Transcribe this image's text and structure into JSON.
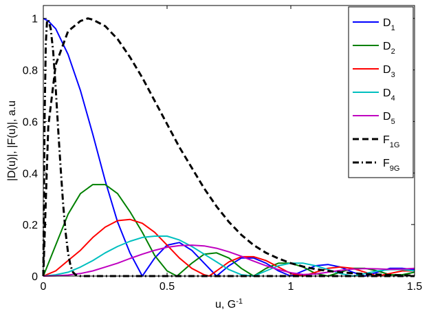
{
  "chart_data": {
    "type": "line",
    "xlabel": "u, G",
    "xlabel_sup": "-1",
    "ylabel": "|D(u)|, |F(u)|, a.u",
    "xlim": [
      0,
      1.5
    ],
    "ylim": [
      0,
      1.05
    ],
    "x_ticks": [
      0,
      0.5,
      1,
      1.5
    ],
    "x_tick_labels": [
      "0",
      "0.5",
      "1",
      "1.5"
    ],
    "y_ticks": [
      0,
      0.2,
      0.4,
      0.6,
      0.8,
      1
    ],
    "y_tick_labels": [
      "0",
      "0.2",
      "0.4",
      "0.6",
      "0.8",
      "1"
    ],
    "grid": false,
    "legend_position": "top-right",
    "series": [
      {
        "name": "D",
        "sub": "1",
        "color": "#0000ff",
        "dash": "solid",
        "x": [
          0,
          0.02,
          0.05,
          0.1,
          0.15,
          0.2,
          0.25,
          0.3,
          0.35,
          0.4,
          0.45,
          0.5,
          0.55,
          0.6,
          0.65,
          0.7,
          0.75,
          0.8,
          0.85,
          0.9,
          0.95,
          1.0,
          1.05,
          1.1,
          1.15,
          1.2,
          1.25,
          1.3,
          1.35,
          1.4,
          1.45,
          1.5
        ],
        "y": [
          1.0,
          0.99,
          0.96,
          0.86,
          0.72,
          0.55,
          0.37,
          0.21,
          0.09,
          0.0,
          0.07,
          0.12,
          0.13,
          0.1,
          0.05,
          0.0,
          0.04,
          0.07,
          0.07,
          0.05,
          0.02,
          0.0,
          0.02,
          0.04,
          0.045,
          0.035,
          0.015,
          0.0,
          0.015,
          0.03,
          0.03,
          0.025
        ]
      },
      {
        "name": "D",
        "sub": "2",
        "color": "#008000",
        "dash": "solid",
        "x": [
          0,
          0.05,
          0.1,
          0.15,
          0.2,
          0.25,
          0.3,
          0.35,
          0.4,
          0.45,
          0.5,
          0.54,
          0.6,
          0.65,
          0.7,
          0.75,
          0.8,
          0.85,
          0.9,
          0.95,
          1.0,
          1.05,
          1.1,
          1.15,
          1.2,
          1.25,
          1.3,
          1.35,
          1.4,
          1.45,
          1.5
        ],
        "y": [
          0.0,
          0.12,
          0.24,
          0.32,
          0.355,
          0.355,
          0.32,
          0.25,
          0.17,
          0.08,
          0.02,
          0.0,
          0.05,
          0.085,
          0.09,
          0.07,
          0.03,
          0.0,
          0.03,
          0.05,
          0.05,
          0.035,
          0.01,
          0.0,
          0.015,
          0.03,
          0.03,
          0.02,
          0.005,
          0.005,
          0.015
        ]
      },
      {
        "name": "D",
        "sub": "3",
        "color": "#ff0000",
        "dash": "solid",
        "x": [
          0,
          0.05,
          0.1,
          0.15,
          0.2,
          0.25,
          0.3,
          0.35,
          0.4,
          0.45,
          0.5,
          0.55,
          0.6,
          0.65,
          0.67,
          0.7,
          0.75,
          0.8,
          0.85,
          0.9,
          0.95,
          1.0,
          1.05,
          1.1,
          1.15,
          1.2,
          1.25,
          1.3,
          1.35,
          1.4,
          1.45,
          1.5
        ],
        "y": [
          0.0,
          0.02,
          0.06,
          0.1,
          0.15,
          0.19,
          0.215,
          0.22,
          0.205,
          0.17,
          0.12,
          0.07,
          0.03,
          0.005,
          0.0,
          0.02,
          0.055,
          0.075,
          0.075,
          0.06,
          0.035,
          0.01,
          0.0,
          0.015,
          0.03,
          0.035,
          0.03,
          0.015,
          0.0,
          0.01,
          0.02,
          0.02
        ]
      },
      {
        "name": "D",
        "sub": "4",
        "color": "#00bfbf",
        "dash": "solid",
        "x": [
          0,
          0.05,
          0.1,
          0.15,
          0.2,
          0.25,
          0.3,
          0.35,
          0.4,
          0.45,
          0.5,
          0.55,
          0.6,
          0.65,
          0.7,
          0.75,
          0.8,
          0.85,
          0.9,
          0.95,
          1.0,
          1.05,
          1.1,
          1.15,
          1.2,
          1.25,
          1.3,
          1.35,
          1.4,
          1.45,
          1.5
        ],
        "y": [
          0.0,
          0.005,
          0.015,
          0.035,
          0.06,
          0.09,
          0.115,
          0.135,
          0.15,
          0.155,
          0.155,
          0.14,
          0.115,
          0.085,
          0.055,
          0.025,
          0.005,
          0.0,
          0.02,
          0.04,
          0.05,
          0.05,
          0.04,
          0.025,
          0.01,
          0.0,
          0.01,
          0.02,
          0.025,
          0.025,
          0.02
        ]
      },
      {
        "name": "D",
        "sub": "5",
        "color": "#bf00bf",
        "dash": "solid",
        "x": [
          0,
          0.05,
          0.1,
          0.15,
          0.2,
          0.25,
          0.3,
          0.35,
          0.4,
          0.45,
          0.5,
          0.55,
          0.6,
          0.65,
          0.7,
          0.75,
          0.8,
          0.85,
          0.9,
          0.95,
          1.0,
          1.05,
          1.1,
          1.15,
          1.2,
          1.25,
          1.3,
          1.35,
          1.4,
          1.45,
          1.5
        ],
        "y": [
          0.0,
          0.001,
          0.004,
          0.01,
          0.02,
          0.035,
          0.05,
          0.068,
          0.085,
          0.1,
          0.112,
          0.118,
          0.12,
          0.117,
          0.108,
          0.094,
          0.077,
          0.058,
          0.04,
          0.025,
          0.013,
          0.006,
          0.008,
          0.015,
          0.022,
          0.027,
          0.029,
          0.028,
          0.026,
          0.027,
          0.03
        ]
      },
      {
        "name": "F",
        "sub": "1G",
        "color": "#000000",
        "dash": "dashed",
        "x": [
          0,
          0.02,
          0.05,
          0.1,
          0.15,
          0.18,
          0.2,
          0.25,
          0.3,
          0.35,
          0.4,
          0.45,
          0.5,
          0.55,
          0.6,
          0.65,
          0.7,
          0.75,
          0.8,
          0.85,
          0.9,
          0.95,
          1.0,
          1.05,
          1.1,
          1.15,
          1.2,
          1.25,
          1.3,
          1.35,
          1.4,
          1.45,
          1.5
        ],
        "y": [
          0.0,
          0.58,
          0.82,
          0.95,
          0.99,
          1.0,
          0.995,
          0.97,
          0.92,
          0.85,
          0.77,
          0.68,
          0.59,
          0.5,
          0.42,
          0.34,
          0.27,
          0.21,
          0.16,
          0.12,
          0.09,
          0.068,
          0.05,
          0.037,
          0.027,
          0.02,
          0.015,
          0.011,
          0.008,
          0.006,
          0.004,
          0.003,
          0.002
        ]
      },
      {
        "name": "F",
        "sub": "9G",
        "color": "#000000",
        "dash": "dashdot",
        "x": [
          0,
          0.005,
          0.01,
          0.015,
          0.02,
          0.03,
          0.04,
          0.05,
          0.06,
          0.07,
          0.08,
          0.09,
          0.1,
          0.11,
          0.12,
          0.13,
          0.15,
          0.2,
          0.3,
          0.5,
          1.0,
          1.5
        ],
        "y": [
          0.0,
          0.6,
          0.9,
          0.99,
          0.995,
          0.96,
          0.87,
          0.73,
          0.57,
          0.42,
          0.28,
          0.17,
          0.09,
          0.04,
          0.015,
          0.005,
          0.0,
          0.0,
          0.0,
          0.0,
          0.0,
          0.0
        ]
      }
    ]
  }
}
